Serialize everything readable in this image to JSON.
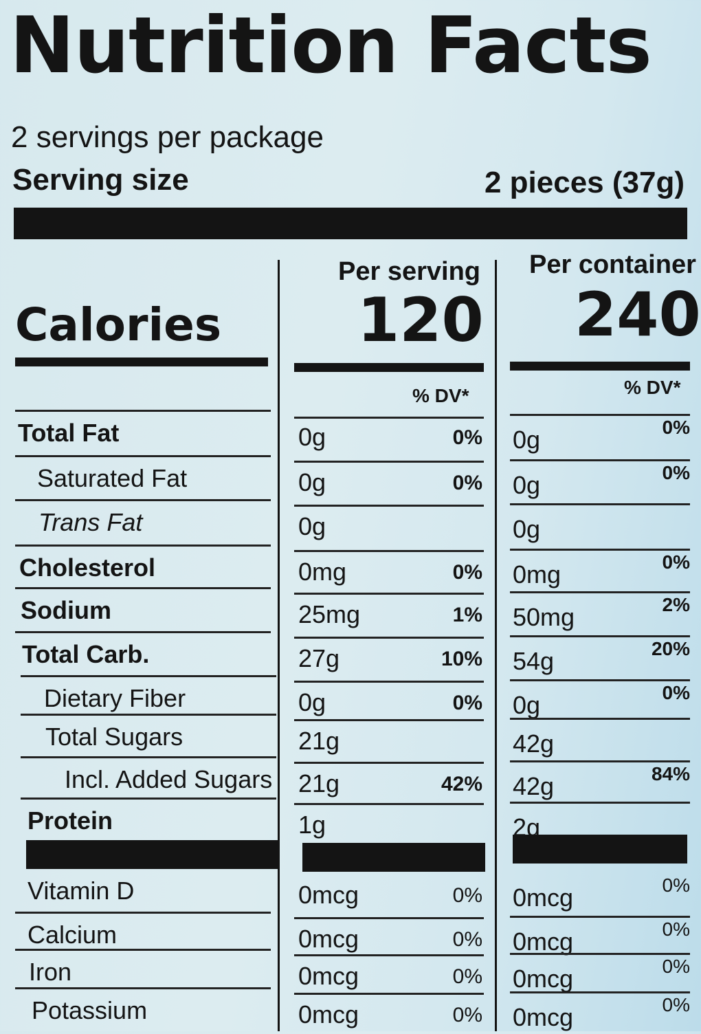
{
  "title": "Nutrition Facts",
  "servings_per": "2 servings per package",
  "serving_size_label": "Serving size",
  "serving_size_value": "2 pieces (37g)",
  "per_serving_label": "Per serving",
  "per_container_label": "Per container",
  "calories_label": "Calories",
  "calories_serving": "120",
  "calories_container": "240",
  "dv_header": "% DV*",
  "nutrients": [
    {
      "label": "Total Fat",
      "a1": "0g",
      "p1": "0%",
      "a2": "0g",
      "p2": "0%"
    },
    {
      "label": "Saturated Fat",
      "a1": "0g",
      "p1": "0%",
      "a2": "0g",
      "p2": "0%"
    },
    {
      "label": "Trans Fat",
      "a1": "0g",
      "p1": "",
      "a2": "0g",
      "p2": ""
    },
    {
      "label": "Cholesterol",
      "a1": "0mg",
      "p1": "0%",
      "a2": "0mg",
      "p2": "0%"
    },
    {
      "label": "Sodium",
      "a1": "25mg",
      "p1": "1%",
      "a2": "50mg",
      "p2": "2%"
    },
    {
      "label": "Total Carb.",
      "a1": "27g",
      "p1": "10%",
      "a2": "54g",
      "p2": "20%"
    },
    {
      "label": "Dietary Fiber",
      "a1": "0g",
      "p1": "0%",
      "a2": "0g",
      "p2": "0%"
    },
    {
      "label": "Total Sugars",
      "a1": "21g",
      "p1": "",
      "a2": "42g",
      "p2": ""
    },
    {
      "label": "Incl. Added Sugars",
      "a1": "21g",
      "p1": "42%",
      "a2": "42g",
      "p2": "84%"
    },
    {
      "label": "Protein",
      "a1": "1g",
      "p1": "",
      "a2": "2g",
      "p2": ""
    }
  ],
  "vitamins": [
    {
      "label": "Vitamin D",
      "a1": "0mcg",
      "p1": "0%",
      "a2": "0mcg",
      "p2": "0%"
    },
    {
      "label": "Calcium",
      "a1": "0mcg",
      "p1": "0%",
      "a2": "0mcg",
      "p2": "0%"
    },
    {
      "label": "Iron",
      "a1": "0mcg",
      "p1": "0%",
      "a2": "0mcg",
      "p2": "0%"
    },
    {
      "label": "Potassium",
      "a1": "0mcg",
      "p1": "0%",
      "a2": "0mcg",
      "p2": "0%"
    }
  ]
}
